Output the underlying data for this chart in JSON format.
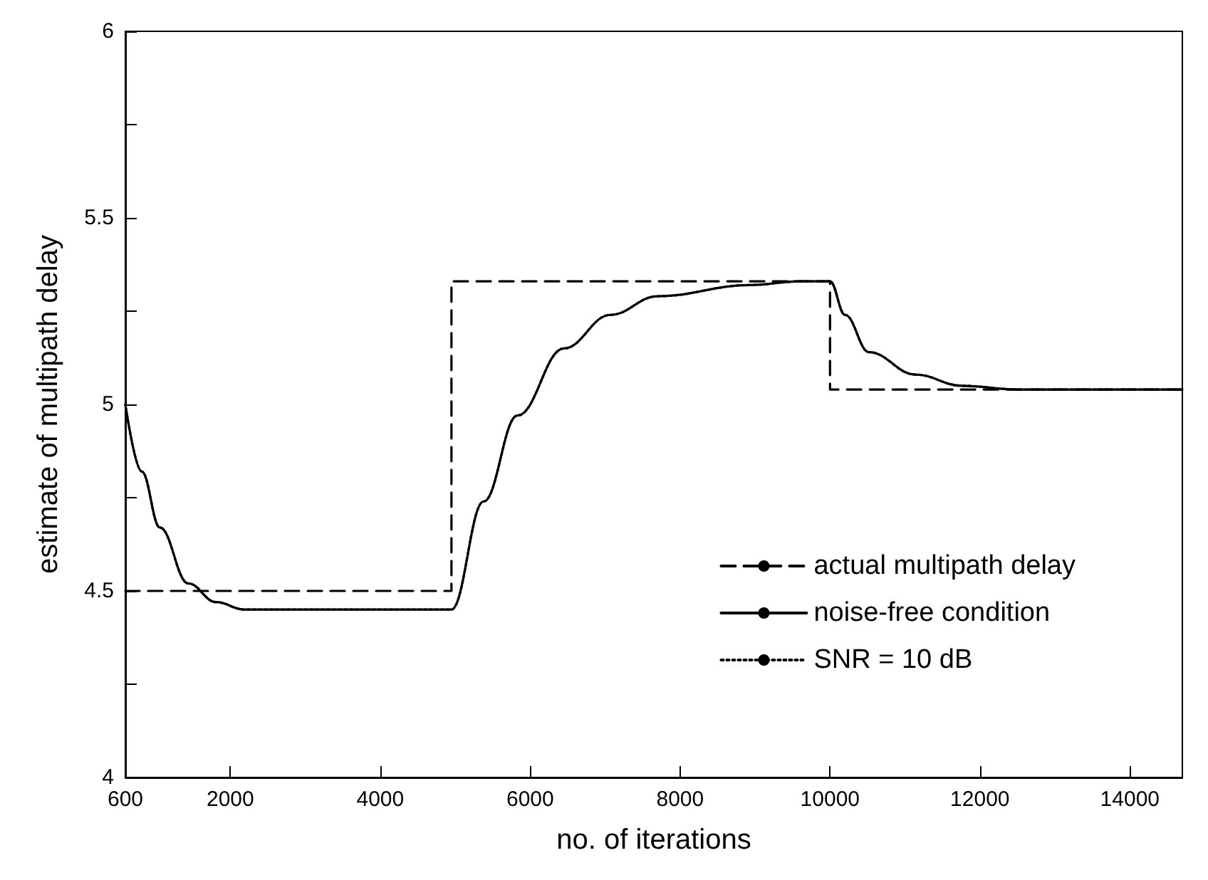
{
  "chart_data": {
    "type": "line",
    "xlabel": "no. of iterations",
    "ylabel": "estimate of multipath delay",
    "xlim": [
      600,
      14700
    ],
    "xticks": [
      600,
      2000,
      4000,
      6000,
      8000,
      10000,
      12000,
      14000
    ],
    "ylim": [
      4,
      6
    ],
    "yticks": [
      4,
      {
        "value": 4.25,
        "label": null
      },
      4.5,
      {
        "value": 4.75,
        "label": null
      },
      5,
      {
        "value": 5.25,
        "label": null
      },
      5.5,
      {
        "value": 5.75,
        "label": null
      },
      6
    ],
    "grid": false,
    "legend": "bottom right",
    "marker": "none",
    "series": [
      {
        "name": "actual multipath delay",
        "color": "#000000",
        "line_style": "dashed",
        "x": [
          600,
          4950,
          4950,
          10000,
          10000,
          14700
        ],
        "values": [
          4.5,
          4.5,
          5.33,
          5.33,
          5.04,
          5.04
        ]
      },
      {
        "name": "noise-free condition",
        "color": "#000000",
        "line_style": "solid",
        "x": [
          600,
          820,
          1060,
          1440,
          1810,
          2190,
          2800,
          3500,
          4300,
          4950,
          5380,
          5830,
          6450,
          7070,
          7700,
          8940,
          9600,
          10000,
          10200,
          10520,
          11140,
          11760,
          12500,
          14700
        ],
        "values": [
          5.0,
          4.82,
          4.67,
          4.52,
          4.47,
          4.45,
          4.45,
          4.45,
          4.45,
          4.45,
          4.74,
          4.97,
          5.15,
          5.24,
          5.29,
          5.32,
          5.33,
          5.33,
          5.24,
          5.14,
          5.08,
          5.05,
          5.04,
          5.04
        ]
      },
      {
        "name": "SNR = 10 dB",
        "color": "#000000",
        "line_style": "dotted",
        "x": [
          600,
          820,
          1060,
          1440,
          1810,
          2190,
          2800,
          3500,
          4300,
          4950,
          5380,
          5830,
          6450,
          7070,
          7700,
          8940,
          9600,
          10000,
          10200,
          10520,
          11140,
          11760,
          12500,
          14700
        ],
        "values": [
          5.0,
          4.82,
          4.67,
          4.52,
          4.47,
          4.45,
          4.45,
          4.45,
          4.45,
          4.45,
          4.74,
          4.97,
          5.15,
          5.24,
          5.29,
          5.32,
          5.33,
          5.33,
          5.24,
          5.14,
          5.08,
          5.05,
          5.04,
          5.04
        ]
      }
    ]
  }
}
